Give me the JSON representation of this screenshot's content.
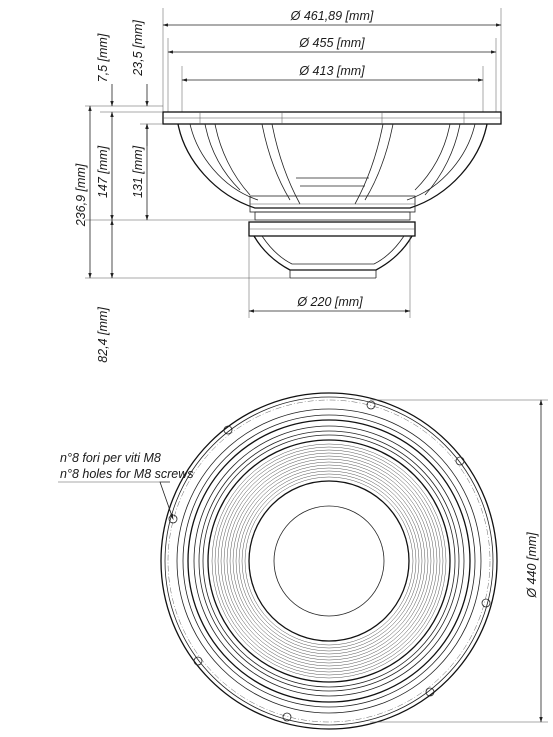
{
  "dimensions": {
    "outer_diameter": "Ø 461,89 [mm]",
    "bolt_circle_diameter": "Ø 455 [mm]",
    "baffle_diameter": "Ø 413 [mm]",
    "magnet_diameter": "Ø 220 [mm]",
    "front_view_diameter": "Ø 440 [mm]",
    "flange_thickness": "7,5 [mm]",
    "mounting_depth_top": "23,5 [mm]",
    "total_depth": "236,9 [mm]",
    "basket_depth": "147 [mm]",
    "cone_depth": "131 [mm]",
    "magnet_depth": "82,4 [mm]"
  },
  "notes": {
    "holes_it": "n°8 fori per viti M8",
    "holes_en": "n°8 holes for M8 screws"
  }
}
